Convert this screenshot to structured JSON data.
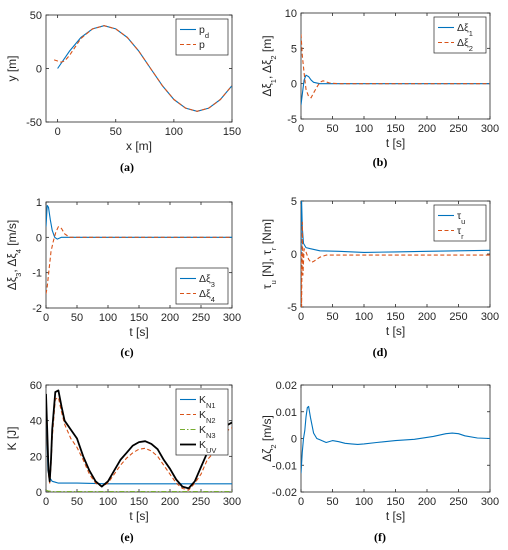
{
  "chart_data": [
    {
      "type": "line",
      "panel": "a",
      "caption": "(a)",
      "xlabel": "x [m]",
      "ylabel": "y [m]",
      "xlim": [
        -10,
        150
      ],
      "ylim": [
        -50,
        50
      ],
      "xticks": [
        0,
        50,
        100,
        150
      ],
      "yticks": [
        -50,
        0,
        50
      ],
      "legend": {
        "position": "top-right",
        "entries": [
          {
            "base": "p",
            "sub": "d",
            "color": "#0072BD",
            "dash": "solid"
          },
          {
            "base": "p",
            "sub": "",
            "color": "#D95319",
            "dash": "dashed"
          }
        ]
      },
      "series": [
        {
          "name": "p_d",
          "color": "#0072BD",
          "dash": "solid",
          "x": [
            0,
            10,
            20,
            30,
            40,
            50,
            60,
            70,
            80,
            90,
            100,
            110,
            120,
            130,
            140,
            150
          ],
          "y": [
            0,
            16,
            29,
            37,
            40,
            37,
            29,
            16,
            0,
            -16,
            -29,
            -37,
            -40,
            -37,
            -29,
            -16
          ]
        },
        {
          "name": "p",
          "color": "#D95319",
          "dash": "dashed",
          "x": [
            -3,
            0,
            3,
            6,
            10,
            20,
            30,
            40,
            50,
            60,
            70,
            80,
            90,
            100,
            110,
            120,
            130,
            140,
            150
          ],
          "y": [
            8,
            7,
            6,
            7,
            12,
            28,
            37,
            40,
            37,
            29,
            16,
            0,
            -16,
            -29,
            -37,
            -40,
            -37,
            -29,
            -16
          ]
        }
      ]
    },
    {
      "type": "line",
      "panel": "b",
      "caption": "(b)",
      "xlabel": "t [s]",
      "ylabel": "Δξ1, Δξ2 [m]",
      "xlim": [
        0,
        300
      ],
      "ylim": [
        -5,
        10
      ],
      "xticks": [
        0,
        50,
        100,
        150,
        200,
        250,
        300
      ],
      "yticks": [
        -5,
        0,
        5,
        10
      ],
      "legend": {
        "position": "top-right",
        "entries": [
          {
            "base": "Δξ",
            "sub": "1",
            "color": "#0072BD",
            "dash": "solid"
          },
          {
            "base": "Δξ",
            "sub": "2",
            "color": "#D95319",
            "dash": "dashed"
          }
        ]
      },
      "series": [
        {
          "name": "Δξ1",
          "color": "#0072BD",
          "dash": "solid",
          "x": [
            0,
            2,
            5,
            8,
            12,
            16,
            20,
            30,
            40,
            60,
            100,
            150,
            200,
            250,
            300
          ],
          "y": [
            -3,
            -1.5,
            0.5,
            1.2,
            1.0,
            0.5,
            0.2,
            0.0,
            0.0,
            0.0,
            0.0,
            0.0,
            0.0,
            0.0,
            0.0
          ]
        },
        {
          "name": "Δξ2",
          "color": "#D95319",
          "dash": "dashed",
          "x": [
            0,
            2,
            5,
            8,
            12,
            16,
            20,
            25,
            30,
            35,
            45,
            60,
            100,
            150,
            200,
            250,
            300
          ],
          "y": [
            7,
            4,
            1.5,
            -0.8,
            -1.8,
            -2.0,
            -1.3,
            -0.5,
            0.2,
            0.4,
            0.1,
            0.0,
            0.0,
            0.0,
            0.0,
            0.0,
            0.0
          ]
        }
      ]
    },
    {
      "type": "line",
      "panel": "c",
      "caption": "(c)",
      "xlabel": "t [s]",
      "ylabel": "Δξ3, Δξ4 [m/s]",
      "xlim": [
        0,
        300
      ],
      "ylim": [
        -2,
        1
      ],
      "xticks": [
        0,
        50,
        100,
        150,
        200,
        250,
        300
      ],
      "yticks": [
        -2,
        -1,
        0,
        1
      ],
      "legend": {
        "position": "bottom-right",
        "entries": [
          {
            "base": "Δξ",
            "sub": "3",
            "color": "#0072BD",
            "dash": "solid"
          },
          {
            "base": "Δξ",
            "sub": "4",
            "color": "#D95319",
            "dash": "dashed"
          }
        ]
      },
      "series": [
        {
          "name": "Δξ3",
          "color": "#0072BD",
          "dash": "solid",
          "x": [
            0,
            2,
            4,
            7,
            10,
            14,
            18,
            25,
            40,
            60,
            100,
            300
          ],
          "y": [
            0.3,
            0.9,
            0.85,
            0.5,
            0.2,
            0.0,
            -0.05,
            0.0,
            0.0,
            0.0,
            0.0,
            0.0
          ]
        },
        {
          "name": "Δξ4",
          "color": "#D95319",
          "dash": "dashed",
          "x": [
            0,
            2,
            5,
            8,
            12,
            16,
            20,
            25,
            30,
            38,
            50,
            70,
            100,
            300
          ],
          "y": [
            -1.6,
            -1.4,
            -0.9,
            -0.4,
            -0.1,
            0.15,
            0.3,
            0.25,
            0.1,
            0.0,
            0.0,
            0.0,
            0.0,
            0.0
          ]
        }
      ]
    },
    {
      "type": "line",
      "panel": "d",
      "caption": "(d)",
      "xlabel": "t [s]",
      "ylabel": "τu [N], τr [Nm]",
      "xlim": [
        0,
        300
      ],
      "ylim": [
        -5,
        5
      ],
      "xticks": [
        0,
        50,
        100,
        150,
        200,
        250,
        300
      ],
      "yticks": [
        -5,
        0,
        5
      ],
      "legend": {
        "position": "top-right",
        "entries": [
          {
            "base": "τ",
            "sub": "u",
            "color": "#0072BD",
            "dash": "solid"
          },
          {
            "base": "τ",
            "sub": "r",
            "color": "#D95319",
            "dash": "dashed"
          }
        ]
      },
      "series": [
        {
          "name": "τu",
          "color": "#0072BD",
          "dash": "solid",
          "x": [
            0,
            1,
            2,
            4,
            8,
            15,
            30,
            60,
            100,
            150,
            200,
            250,
            300
          ],
          "y": [
            0,
            5,
            2.5,
            1.0,
            0.6,
            0.5,
            0.3,
            0.25,
            0.15,
            0.2,
            0.25,
            0.3,
            0.35
          ]
        },
        {
          "name": "τr",
          "color": "#D95319",
          "dash": "dashed",
          "x": [
            0,
            1,
            2,
            3,
            5,
            8,
            12,
            16,
            20,
            30,
            40,
            60,
            100,
            150,
            200,
            250,
            300
          ],
          "y": [
            0,
            -5,
            3,
            -2,
            0.5,
            0.2,
            -0.5,
            -0.8,
            -0.7,
            -0.3,
            -0.1,
            -0.1,
            -0.1,
            -0.1,
            -0.1,
            -0.1,
            -0.1
          ]
        }
      ]
    },
    {
      "type": "line",
      "panel": "e",
      "caption": "(e)",
      "xlabel": "t [s]",
      "ylabel": "K [J]",
      "xlim": [
        0,
        300
      ],
      "ylim": [
        0,
        60
      ],
      "xticks": [
        0,
        50,
        100,
        150,
        200,
        250,
        300
      ],
      "yticks": [
        0,
        20,
        40,
        60
      ],
      "legend": {
        "position": "top-right",
        "entries": [
          {
            "base": "K",
            "sub": "N1",
            "color": "#0072BD",
            "dash": "solid"
          },
          {
            "base": "K",
            "sub": "N2",
            "color": "#D95319",
            "dash": "dashed"
          },
          {
            "base": "K",
            "sub": "N3",
            "color": "#77AC30",
            "dash": "dashdot"
          },
          {
            "base": "K",
            "sub": "UV",
            "color": "#000000",
            "dash": "solid"
          }
        ]
      },
      "series": [
        {
          "name": "KN1",
          "color": "#0072BD",
          "dash": "solid",
          "x": [
            0,
            3,
            6,
            10,
            15,
            20,
            30,
            50,
            100,
            150,
            200,
            250,
            300
          ],
          "y": [
            53,
            12,
            8,
            6,
            5.5,
            5,
            5,
            5,
            4.6,
            4.6,
            4.6,
            4.6,
            4.6
          ]
        },
        {
          "name": "KN2",
          "color": "#D95319",
          "dash": "dashed",
          "x": [
            0,
            2,
            4,
            6,
            8,
            10,
            15,
            20,
            25,
            30,
            40,
            50,
            60,
            70,
            80,
            90,
            100,
            110,
            120,
            130,
            140,
            150,
            160,
            170,
            180,
            190,
            200,
            210,
            220,
            230,
            240,
            250,
            260,
            270,
            280,
            290,
            300
          ],
          "y": [
            50,
            30,
            10,
            5,
            15,
            30,
            52,
            53,
            45,
            38,
            30,
            25,
            18,
            10,
            5,
            3,
            5,
            10,
            15,
            19,
            22,
            24,
            24.5,
            23,
            20,
            15,
            10,
            5,
            2,
            1,
            5,
            10,
            18,
            22,
            30,
            34,
            36
          ]
        },
        {
          "name": "KN3",
          "color": "#77AC30",
          "dash": "dashdot",
          "x": [
            0,
            2,
            4,
            10,
            50,
            100,
            150,
            200,
            250,
            300
          ],
          "y": [
            1,
            0.8,
            0.5,
            0.3,
            0.3,
            0.3,
            0.3,
            0.3,
            0.3,
            0.3
          ]
        },
        {
          "name": "KUV",
          "color": "#000000",
          "dash": "solid",
          "x": [
            0,
            2,
            4,
            6,
            8,
            10,
            15,
            20,
            25,
            30,
            40,
            50,
            60,
            70,
            80,
            90,
            100,
            110,
            120,
            130,
            140,
            150,
            160,
            170,
            180,
            190,
            200,
            210,
            220,
            230,
            240,
            250,
            260,
            270,
            280,
            290,
            300
          ],
          "y": [
            55,
            35,
            12,
            6,
            18,
            35,
            56,
            57,
            48,
            40,
            35,
            30,
            20,
            12,
            6,
            3,
            6,
            12,
            18,
            22,
            26,
            28,
            28.5,
            27,
            24,
            18,
            13,
            7,
            3,
            2,
            6,
            14,
            22,
            25,
            32,
            37,
            39
          ]
        }
      ]
    },
    {
      "type": "line",
      "panel": "f",
      "caption": "(f)",
      "xlabel": "t [s]",
      "ylabel": "Δζ2 [m/s]",
      "xlim": [
        0,
        300
      ],
      "ylim": [
        -0.02,
        0.02
      ],
      "xticks": [
        0,
        50,
        100,
        150,
        200,
        250,
        300
      ],
      "yticks": [
        -0.02,
        -0.01,
        0,
        0.01,
        0.02
      ],
      "legend": null,
      "series": [
        {
          "name": "Δζ2",
          "color": "#0072BD",
          "dash": "solid",
          "x": [
            0,
            2,
            4,
            6,
            8,
            10,
            12,
            15,
            20,
            25,
            30,
            40,
            50,
            60,
            70,
            80,
            90,
            100,
            120,
            150,
            180,
            210,
            230,
            240,
            250,
            260,
            280,
            300
          ],
          "y": [
            -0.013,
            -0.005,
            0.0,
            0.003,
            0.008,
            0.0115,
            0.012,
            0.008,
            0.002,
            0.0,
            -0.0005,
            -0.0015,
            -0.0008,
            -0.0012,
            -0.0018,
            -0.002,
            -0.0022,
            -0.002,
            -0.0015,
            -0.0008,
            -0.0003,
            0.0008,
            0.0018,
            0.002,
            0.0018,
            0.001,
            0.0002,
            0.0
          ]
        }
      ]
    }
  ]
}
